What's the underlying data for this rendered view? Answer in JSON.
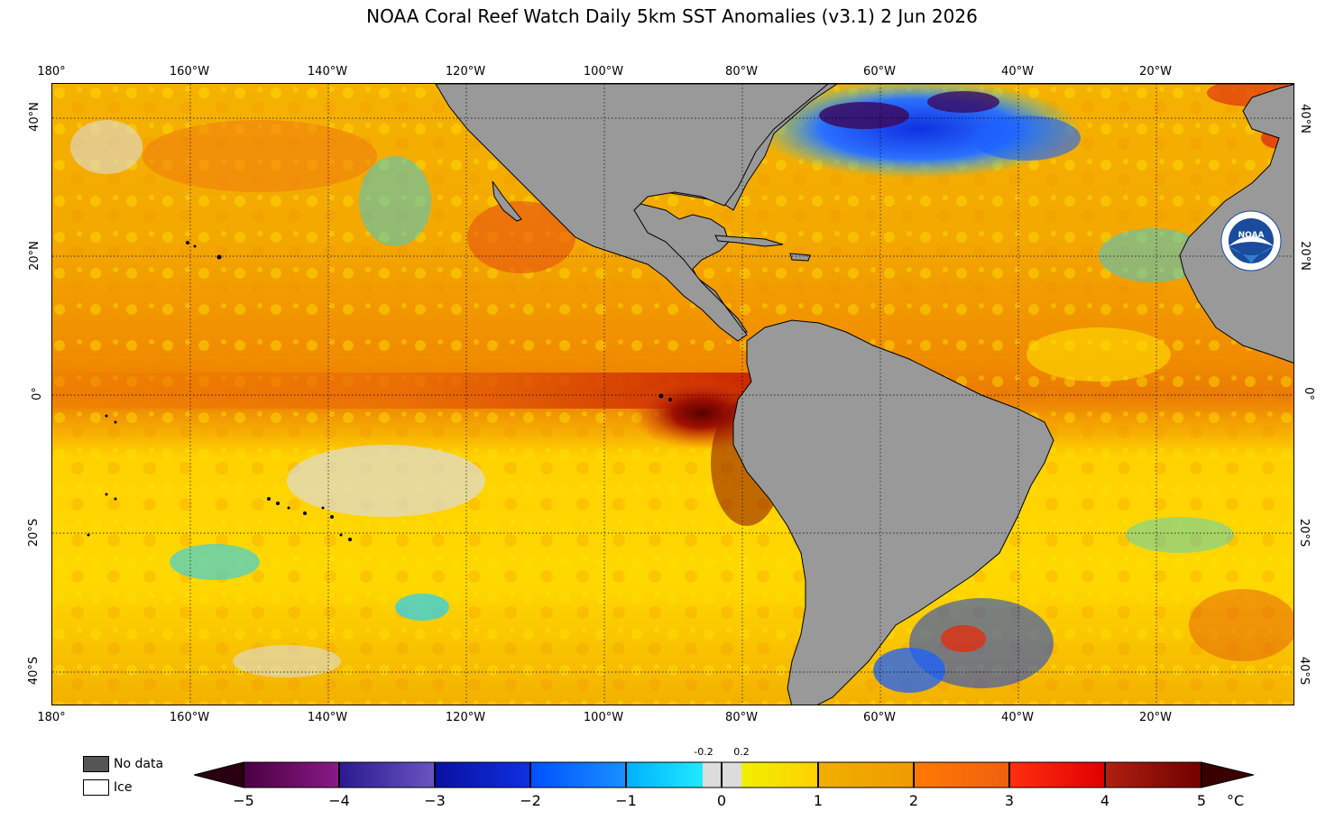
{
  "title": "NOAA Coral Reef Watch Daily 5km SST Anomalies  (v3.1)   2 Jun 2026",
  "lon_ticks": [
    "180°",
    "160°W",
    "140°W",
    "120°W",
    "100°W",
    "80°W",
    "60°W",
    "40°W",
    "20°W"
  ],
  "lat_ticks_left": [
    "40°N",
    "20°N",
    "0°",
    "20°S",
    "40°S"
  ],
  "lat_ticks_right": [
    "40°N",
    "20°N",
    "0°",
    "20°S",
    "40°S"
  ],
  "legend": {
    "no_data_label": "No data",
    "ice_label": "Ice",
    "no_data_color": "#555555",
    "ice_color": "#ffffff"
  },
  "colorbar": {
    "ticks": [
      "−5",
      "−4",
      "−3",
      "−2",
      "−1",
      "0",
      "1",
      "2",
      "3",
      "4",
      "5"
    ],
    "small_ticks": [
      "-0.2",
      "0.2"
    ],
    "unit": "°C",
    "colors": {
      "below": "#2a0010",
      "m5_m4": [
        "#4a0040",
        "#8a1a88"
      ],
      "m4_m3": [
        "#2a1a90",
        "#6a55c0"
      ],
      "m3_m2": [
        "#0a10a0",
        "#1030e0"
      ],
      "m2_m1": [
        "#0050ff",
        "#1a90ff"
      ],
      "m1_m02": [
        "#00b0ff",
        "#20eaff"
      ],
      "neutral": "#dcdcdc",
      "p02_p1": [
        "#f0f000",
        "#ffd000"
      ],
      "p1_p2": [
        "#f0b000",
        "#f09a00"
      ],
      "p2_p3": [
        "#ff7a00",
        "#f06010"
      ],
      "p3_p4": [
        "#ff3010",
        "#e00000"
      ],
      "p4_p5": [
        "#b02010",
        "#700000"
      ],
      "above": "#3a0000"
    }
  },
  "map_colors": {
    "land": "#999999",
    "ocean_warm1": "#ffd400",
    "ocean_warm2": "#f5b000",
    "ocean_warm3": "#ef9000",
    "ocean_hot": "#e85010",
    "ocean_very_hot": "#8a0a00",
    "ocean_neutral": "#dcdcdc",
    "ocean_cool": "#20d0ff",
    "ocean_cold": "#1040e0",
    "ocean_very_cold": "#3a0a60",
    "logo_blue": "#1a4b9c"
  },
  "logo": {
    "text": "NOAA"
  }
}
